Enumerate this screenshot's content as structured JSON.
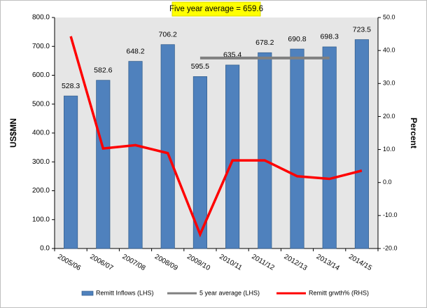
{
  "chart_data": {
    "type": "bar_line",
    "annotation": "Five year average = 659.6",
    "ylabel": "US$MN",
    "y2label": "Percent",
    "categories": [
      "2005/06",
      "2006/07",
      "2007/08",
      "2008/09",
      "2009/10",
      "2010/11",
      "2011/12",
      "2012/13",
      "2013/14",
      "2014/15"
    ],
    "series": [
      {
        "name": "Remitt Inflows (LHS)",
        "type": "bar",
        "color": "#4f81bd",
        "axis": "y",
        "values": [
          528.3,
          582.6,
          648.2,
          706.2,
          595.5,
          635.4,
          678.2,
          690.8,
          698.3,
          723.5
        ]
      },
      {
        "name": "5 year average (LHS)",
        "type": "line",
        "color": "#808080",
        "axis": "y",
        "values": [
          null,
          null,
          null,
          null,
          659.6,
          659.6,
          659.6,
          659.6,
          659.6,
          null
        ]
      },
      {
        "name": "Remitt grwth% (RHS)",
        "type": "line",
        "color": "#ff0000",
        "axis": "y2",
        "values": [
          44.3,
          10.3,
          11.3,
          8.9,
          -15.7,
          6.7,
          6.7,
          1.9,
          1.1,
          3.6
        ]
      }
    ],
    "ylim": [
      0,
      800
    ],
    "yticks": [
      {
        "value": 0,
        "label": "0.0"
      },
      {
        "value": 100,
        "label": "100.0"
      },
      {
        "value": 200,
        "label": "200.0"
      },
      {
        "value": 300,
        "label": "300.0"
      },
      {
        "value": 400,
        "label": "400.0"
      },
      {
        "value": 500,
        "label": "500.0"
      },
      {
        "value": 600,
        "label": "600.0"
      },
      {
        "value": 700,
        "label": "700.0"
      },
      {
        "value": 800,
        "label": "800.0"
      }
    ],
    "y2lim": [
      -20,
      50
    ],
    "y2ticks": [
      {
        "value": -20,
        "label": "-20.0"
      },
      {
        "value": -10,
        "label": "-10.0"
      },
      {
        "value": 0,
        "label": "0.0"
      },
      {
        "value": 10,
        "label": "10.0"
      },
      {
        "value": 20,
        "label": "20.0"
      },
      {
        "value": 30,
        "label": "30.0"
      },
      {
        "value": 40,
        "label": "40.0"
      },
      {
        "value": 50,
        "label": "50.0"
      }
    ],
    "legend": "bottom"
  }
}
